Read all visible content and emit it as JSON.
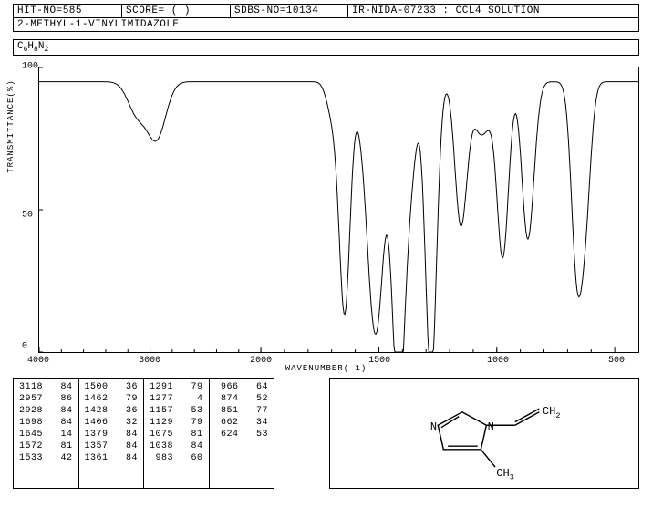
{
  "header": {
    "hit_no": "HIT-NO=585",
    "score": "SCORE=  (  )",
    "sdbs_no": "SDBS-NO=10134",
    "ir_info": "IR-NIDA-07233 : CCL4 SOLUTION"
  },
  "compound_name": "2-METHYL-1-VINYLIMIDAZOLE",
  "formula_html": "C<sub>6</sub>H<sub>8</sub>N<sub>2</sub>",
  "chart": {
    "type": "line",
    "y_axis_label": "TRANSMITTANCE(%)",
    "x_axis_label": "WAVENUMBER(-1)",
    "ylim": [
      0,
      100
    ],
    "y_ticks": [
      0,
      50,
      100
    ],
    "xlim": [
      4000,
      400
    ],
    "x_ticks": [
      4000,
      3000,
      2000,
      1500,
      1000,
      500
    ],
    "line_color": "#000000",
    "background_color": "#ffffff",
    "baseline": 95,
    "peaks": [
      {
        "wn": 3118,
        "t": 84
      },
      {
        "wn": 2957,
        "t": 86
      },
      {
        "wn": 2928,
        "t": 84
      },
      {
        "wn": 1698,
        "t": 84
      },
      {
        "wn": 1645,
        "t": 14
      },
      {
        "wn": 1572,
        "t": 81
      },
      {
        "wn": 1533,
        "t": 42
      },
      {
        "wn": 1500,
        "t": 36
      },
      {
        "wn": 1462,
        "t": 79
      },
      {
        "wn": 1428,
        "t": 36
      },
      {
        "wn": 1406,
        "t": 32
      },
      {
        "wn": 1379,
        "t": 84
      },
      {
        "wn": 1357,
        "t": 84
      },
      {
        "wn": 1361,
        "t": 84
      },
      {
        "wn": 1291,
        "t": 79
      },
      {
        "wn": 1277,
        "t": 4
      },
      {
        "wn": 1157,
        "t": 53
      },
      {
        "wn": 1129,
        "t": 79
      },
      {
        "wn": 1075,
        "t": 81
      },
      {
        "wn": 1038,
        "t": 84
      },
      {
        "wn": 983,
        "t": 60
      },
      {
        "wn": 966,
        "t": 64
      },
      {
        "wn": 874,
        "t": 52
      },
      {
        "wn": 851,
        "t": 77
      },
      {
        "wn": 662,
        "t": 34
      },
      {
        "wn": 624,
        "t": 53
      }
    ]
  },
  "peak_table": {
    "columns": [
      [
        [
          "3118",
          "84"
        ],
        [
          "2957",
          "86"
        ],
        [
          "2928",
          "84"
        ],
        [
          "1698",
          "84"
        ],
        [
          "1645",
          "14"
        ],
        [
          "1572",
          "81"
        ],
        [
          "1533",
          "42"
        ]
      ],
      [
        [
          "1500",
          "36"
        ],
        [
          "1462",
          "79"
        ],
        [
          "1428",
          "36"
        ],
        [
          "1406",
          "32"
        ],
        [
          "1379",
          "84"
        ],
        [
          "1357",
          "84"
        ],
        [
          "1361",
          "84"
        ]
      ],
      [
        [
          "1291",
          "79"
        ],
        [
          "1277",
          " 4"
        ],
        [
          "1157",
          "53"
        ],
        [
          "1129",
          "79"
        ],
        [
          "1075",
          "81"
        ],
        [
          "1038",
          "84"
        ],
        [
          " 983",
          "60"
        ]
      ],
      [
        [
          " 966",
          "64"
        ],
        [
          " 874",
          "52"
        ],
        [
          " 851",
          "77"
        ],
        [
          " 662",
          "34"
        ],
        [
          " 624",
          "53"
        ],
        [
          "",
          ""
        ],
        [
          "",
          ""
        ]
      ]
    ]
  },
  "structure": {
    "labels": {
      "ch2": "CH",
      "ch2_sub": "2",
      "ch3": "CH",
      "ch3_sub": "3",
      "n": "N",
      "n2": "N"
    }
  }
}
